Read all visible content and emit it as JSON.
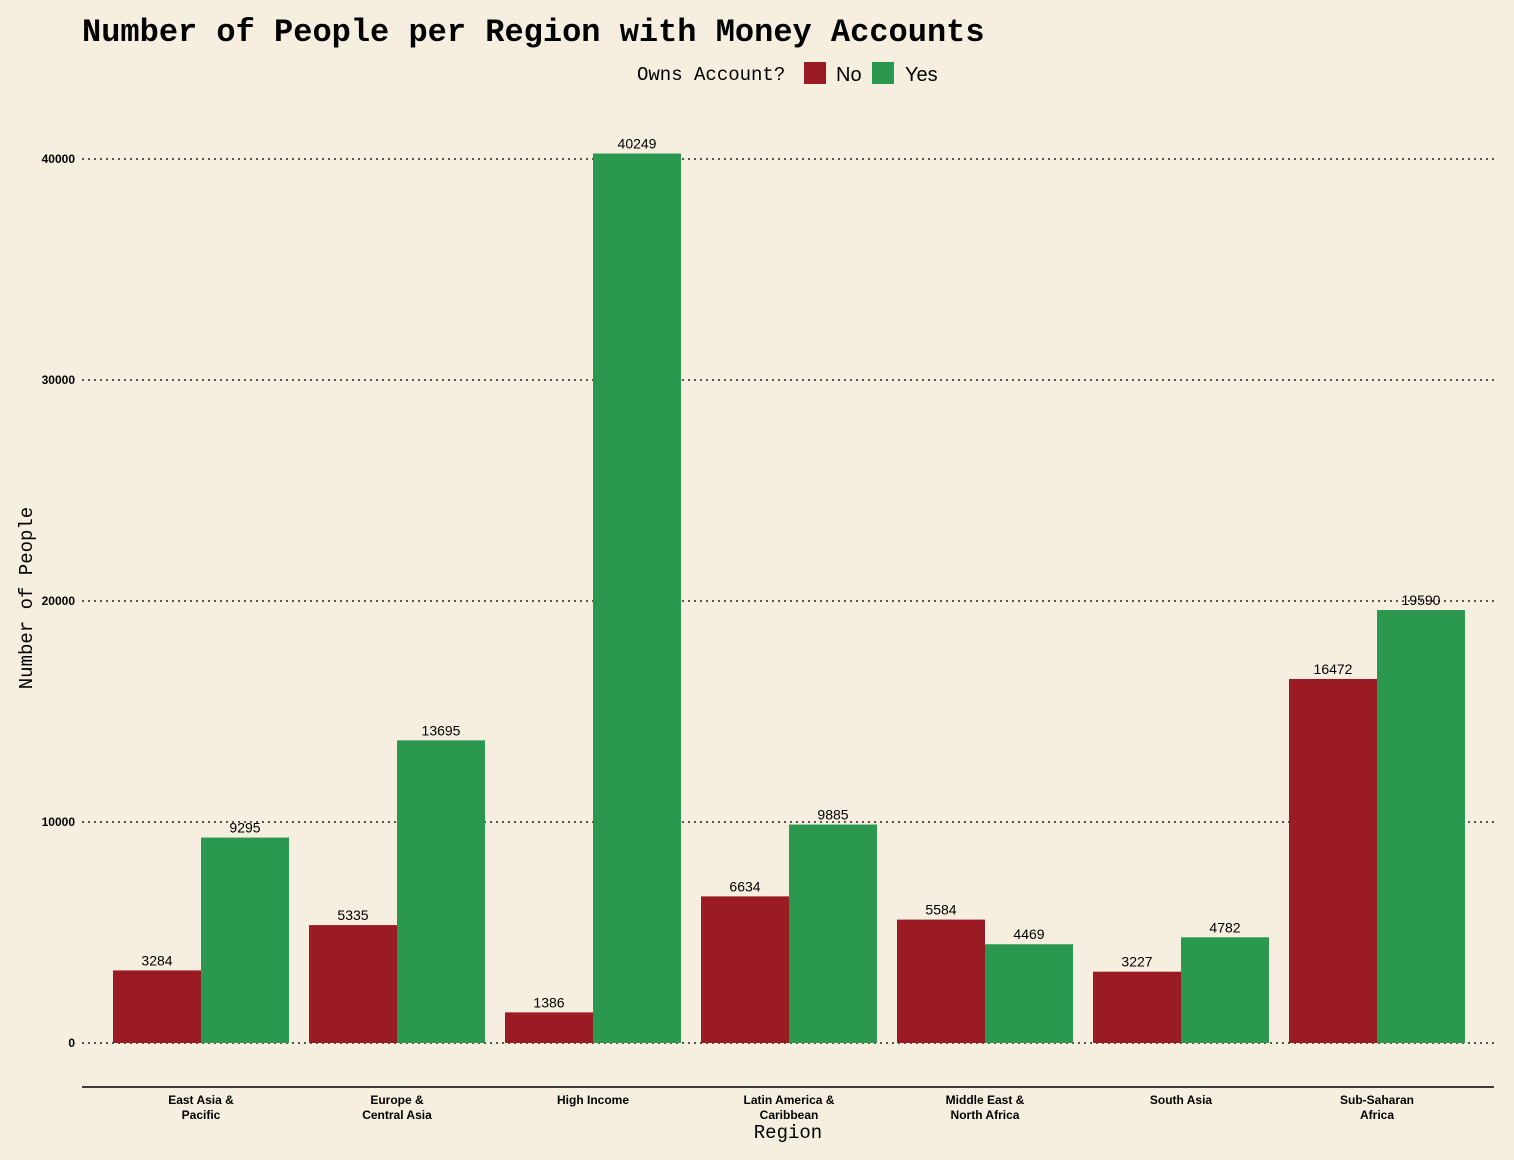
{
  "chart_data": {
    "type": "bar",
    "title": "Number of People per Region with Money Accounts",
    "xlabel": "Region",
    "ylabel": "Number of People",
    "legend": {
      "title": "Owns Account?",
      "placement": "top-center",
      "entries": [
        "No",
        "Yes"
      ]
    },
    "categories": [
      [
        "East Asia &",
        "Pacific"
      ],
      [
        "Europe &",
        "Central Asia"
      ],
      [
        "High Income"
      ],
      [
        "Latin America &",
        "Caribbean"
      ],
      [
        "Middle East &",
        "North Africa"
      ],
      [
        "South Asia"
      ],
      [
        "Sub-Saharan",
        "Africa"
      ]
    ],
    "series": [
      {
        "name": "No",
        "color": "#9a1b24",
        "values": [
          3284,
          5335,
          1386,
          6634,
          5584,
          3227,
          16472
        ]
      },
      {
        "name": "Yes",
        "color": "#2a984f",
        "values": [
          9295,
          13695,
          40249,
          9885,
          4469,
          4782,
          19590
        ]
      }
    ],
    "yticks": [
      0,
      10000,
      20000,
      30000,
      40000
    ],
    "ylim": [
      -2000,
      42500
    ],
    "grid": "horizontal dotted"
  }
}
